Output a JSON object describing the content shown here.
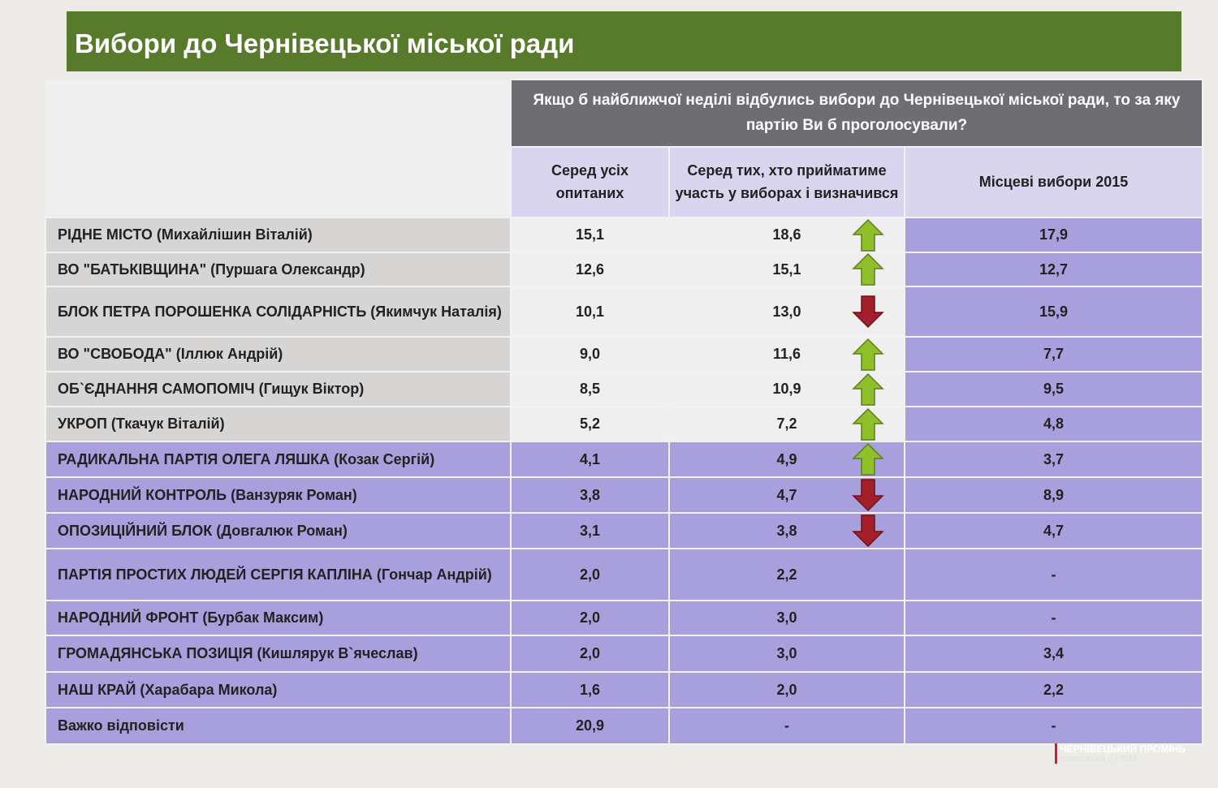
{
  "header": {
    "title": "Вибори до Чернівецької міської ради"
  },
  "table": {
    "question": "Якщо б найближчої неділі відбулись вибори до Чернівецької міської ради, то за яку партію Ви б проголосували?",
    "columns": [
      "Серед усіх опитаних",
      "Серед тих, хто прийматиме участь у виборах і визначився",
      "Місцеві вибори 2015"
    ],
    "rows": [
      [
        "РІДНЕ МІСТО (Михайлішин Віталій)",
        "15,1",
        "18,6",
        "17,9"
      ],
      [
        "ВО \"БАТЬКІВЩИНА\" (Пуршага Олександр)",
        "12,6",
        "15,1",
        "12,7"
      ],
      [
        "БЛОК ПЕТРА ПОРОШЕНКА СОЛІДАРНІСТЬ (Якимчук Наталія)",
        "10,1",
        "13,0",
        "15,9"
      ],
      [
        "ВО \"СВОБОДА\" (Іллюк Андрій)",
        "9,0",
        "11,6",
        "7,7"
      ],
      [
        "ОБ`ЄДНАННЯ САМОПОМІЧ (Гищук Віктор)",
        "8,5",
        "10,9",
        "9,5"
      ],
      [
        "УКРОП (Ткачук Віталій)",
        "5,2",
        "7,2",
        "4,8"
      ],
      [
        "РАДИКАЛЬНА ПАРТІЯ ОЛЕГА ЛЯШКА (Козак Сергій)",
        "4,1",
        "4,9",
        "3,7"
      ],
      [
        "НАРОДНИЙ КОНТРОЛЬ (Ванзуряк Роман)",
        "3,8",
        "4,7",
        "8,9"
      ],
      [
        "ОПОЗИЦІЙНИЙ БЛОК (Довгалюк Роман)",
        "3,1",
        "3,8",
        "4,7"
      ],
      [
        "ПАРТІЯ ПРОСТИХ ЛЮДЕЙ СЕРГІЯ КАПЛІНА (Гончар Андрій)",
        "2,0",
        "2,2",
        "-"
      ],
      [
        "НАРОДНИЙ ФРОНТ (Бурбак Максим)",
        "2,0",
        "3,0",
        "-"
      ],
      [
        "ГРОМАДЯНСЬКА ПОЗИЦІЯ (Кишлярук В`ячеслав)",
        "2,0",
        "3,0",
        "3,4"
      ],
      [
        "НАШ КРАЙ (Харабара Микола)",
        "1,6",
        "2,0",
        "2,2"
      ],
      [
        "Важко відповісти",
        "20,9",
        "-",
        "-"
      ]
    ],
    "trends": [
      "up",
      "up",
      "down",
      "up",
      "up",
      "up",
      "up",
      "down",
      "down",
      null,
      null,
      null,
      null,
      null
    ]
  },
  "watermark": {
    "name": "чернівецький промінь",
    "site": "promin.cv.ua (c) 2015"
  }
}
